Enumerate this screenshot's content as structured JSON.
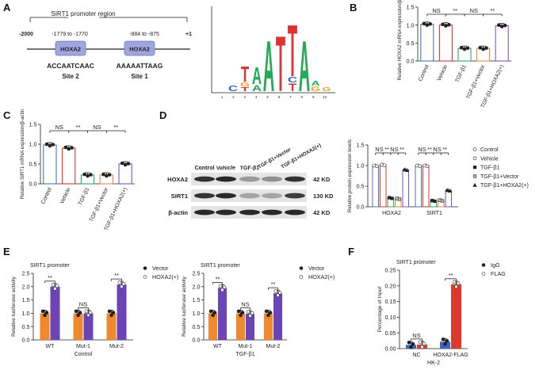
{
  "panels": {
    "A": "A",
    "B": "B",
    "C": "C",
    "D": "D",
    "E": "E",
    "F": "F"
  },
  "colors": {
    "control": "#4c72c4",
    "vehicle": "#d9392b",
    "tgf": "#2fa866",
    "tgf_vector": "#f08a3c",
    "hoxa2": "#7b52c7",
    "orange": "#f0882e",
    "purple": "#6b44b8",
    "blue": "#3c64c8",
    "red": "#dc3a2c",
    "motif_green": "#22aa55",
    "motif_red": "#dd3333",
    "motif_blue": "#3366cc",
    "motif_orange": "#f0a030"
  },
  "panelA": {
    "title": "SIRT1 promoter region",
    "left_pos": "-2000",
    "right_pos": "+1",
    "site2_range": "-1779 to -1770",
    "site1_range": "-884 to -875",
    "box_label": "HOXA2",
    "site2_seq": "ACCAATCAAC",
    "site1_seq": "AAAAATTAAG",
    "site2_label": "Site 2",
    "site1_label": "Site 1",
    "motif_axis": [
      "1",
      "2",
      "3",
      "4",
      "5",
      "6",
      "7",
      "8",
      "9",
      "10"
    ]
  },
  "groups5": [
    "Control",
    "Vehicle",
    "TGF-β1",
    "TGF-β1+Vector",
    "TGF-β1+HOXA2(+)"
  ],
  "sig": {
    "ns": "NS",
    "star": "**"
  },
  "chart_data": [
    {
      "id": "B",
      "type": "bar",
      "ylabel": "Relative HOXA2 mRNA expression/β-actin",
      "ylim": [
        0,
        1.5
      ],
      "yticks": [
        "0.0",
        "0.5",
        "1.0",
        "1.5"
      ],
      "categories": [
        "Control",
        "Vehicle",
        "TGF-β1",
        "TGF-β1+Vector",
        "TGF-β1+HOXA2(+)"
      ],
      "values": [
        1.02,
        1.0,
        0.35,
        0.35,
        0.98
      ]
    },
    {
      "id": "C",
      "type": "bar",
      "ylabel": "Relative SIRT1 mRNA expression/β-actin",
      "ylim": [
        0,
        1.5
      ],
      "yticks": [
        "0.0",
        "0.5",
        "1.0",
        "1.5"
      ],
      "categories": [
        "Control",
        "Vehicle",
        "TGF-β1",
        "TGF-β1+Vector",
        "TGF-β1+HOXA2(+)"
      ],
      "values": [
        0.98,
        0.9,
        0.22,
        0.22,
        0.5
      ]
    },
    {
      "id": "D",
      "type": "bar",
      "ylabel": "Relative protein expression levels",
      "ylim": [
        0,
        1.5
      ],
      "yticks": [
        "0.0",
        "0.5",
        "1.0",
        "1.5"
      ],
      "categories": [
        "HOXA2",
        "SIRT1"
      ],
      "series": [
        {
          "name": "Control",
          "values": [
            1.0,
            1.0
          ]
        },
        {
          "name": "Vehicle",
          "values": [
            1.02,
            1.0
          ]
        },
        {
          "name": "TGF-β1",
          "values": [
            0.22,
            0.15
          ]
        },
        {
          "name": "TGF-β1+Vector",
          "values": [
            0.2,
            0.16
          ]
        },
        {
          "name": "TGF-β1+HOXA2(+)",
          "values": [
            0.9,
            0.4
          ]
        }
      ]
    },
    {
      "id": "E1",
      "type": "bar",
      "title": "SIRT1 promoter",
      "ylabel": "Relative luciferase activity",
      "xlabel": "Control",
      "ylim": [
        0,
        2.5
      ],
      "yticks": [
        "0.0",
        "0.5",
        "1.0",
        "1.5",
        "2.0",
        "2.5"
      ],
      "categories": [
        "WT",
        "Mut-1",
        "Mut-2"
      ],
      "series": [
        {
          "name": "Vector",
          "values": [
            1.0,
            1.0,
            1.0
          ]
        },
        {
          "name": "HOXA2(+)",
          "values": [
            2.0,
            1.0,
            2.08
          ]
        }
      ]
    },
    {
      "id": "E2",
      "type": "bar",
      "title": "SIRT1 promoter",
      "ylabel": "Relative luciferase activity",
      "xlabel": "TGF-β1",
      "ylim": [
        0,
        2.5
      ],
      "yticks": [
        "0.0",
        "0.5",
        "1.0",
        "1.5",
        "2.0",
        "2.5"
      ],
      "categories": [
        "WT",
        "Mut-1",
        "Mut-2"
      ],
      "series": [
        {
          "name": "Vector",
          "values": [
            1.0,
            1.0,
            1.0
          ]
        },
        {
          "name": "HOXA2(+)",
          "values": [
            1.95,
            0.98,
            1.75
          ]
        }
      ]
    },
    {
      "id": "F",
      "type": "bar",
      "title": "SIRT1 promoter",
      "ylabel": "Percentage of Input",
      "xlabel": "HK-2",
      "ylim": [
        0,
        0.25
      ],
      "yticks": [
        "0.00",
        "0.05",
        "0.10",
        "0.15",
        "0.20",
        "0.25"
      ],
      "categories": [
        "NC",
        "HOXA2-FLAG"
      ],
      "series": [
        {
          "name": "IgG",
          "values": [
            0.012,
            0.022
          ]
        },
        {
          "name": "FLAG",
          "values": [
            0.013,
            0.205
          ]
        }
      ]
    }
  ],
  "blot": {
    "lanes": [
      "Control",
      "Vehicle",
      "TGF-β1",
      "TGF-β1+Vector",
      "TGF-β1+HOXA2(+)"
    ],
    "rows": [
      {
        "label": "HOXA2",
        "kd": "42 KD"
      },
      {
        "label": "SIRT1",
        "kd": "130 KD"
      },
      {
        "label": "β-actin",
        "kd": "42 KD"
      }
    ]
  }
}
